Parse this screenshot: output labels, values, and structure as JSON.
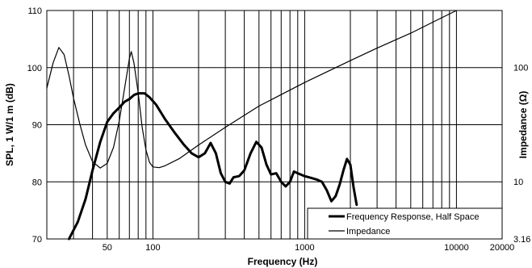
{
  "chart_data": {
    "type": "line",
    "xlabel": "Frequency (Hz)",
    "ylabel_left": "SPL, 1 W/1 m (dB)",
    "ylabel_right": "Impedance (Ω)",
    "x_scale": "log",
    "xlim": [
      20,
      20000
    ],
    "ylim_left": [
      70,
      110
    ],
    "ylim_right": [
      3.16,
      316
    ],
    "y_scale_right": "log",
    "grid": true,
    "x_tick_labels": [
      {
        "value": 50,
        "label": "50"
      },
      {
        "value": 100,
        "label": "100"
      },
      {
        "value": 1000,
        "label": "1000"
      },
      {
        "value": 10000,
        "label": "10000"
      },
      {
        "value": 20000,
        "label": "20000"
      }
    ],
    "y_left_ticks": [
      {
        "value": 70,
        "label": "70"
      },
      {
        "value": 80,
        "label": "80"
      },
      {
        "value": 90,
        "label": "90"
      },
      {
        "value": 100,
        "label": "100"
      },
      {
        "value": 110,
        "label": "110"
      }
    ],
    "y_right_ticks": [
      {
        "value": 3.16,
        "label": "3.16"
      },
      {
        "value": 10,
        "label": "10"
      },
      {
        "value": 100,
        "label": "100"
      }
    ],
    "legend_position": "bottom-right",
    "series": [
      {
        "name": "Frequency Response, Half Space",
        "axis": "left",
        "line": "thick",
        "points": [
          [
            28,
            70
          ],
          [
            32,
            73
          ],
          [
            36,
            77
          ],
          [
            40,
            82
          ],
          [
            45,
            87
          ],
          [
            50,
            90.5
          ],
          [
            55,
            92
          ],
          [
            60,
            93
          ],
          [
            65,
            94
          ],
          [
            70,
            94.5
          ],
          [
            75,
            95.2
          ],
          [
            80,
            95.5
          ],
          [
            88,
            95.5
          ],
          [
            95,
            94.8
          ],
          [
            105,
            93.5
          ],
          [
            120,
            91
          ],
          [
            140,
            88.5
          ],
          [
            160,
            86.5
          ],
          [
            180,
            85
          ],
          [
            200,
            84.3
          ],
          [
            220,
            85
          ],
          [
            240,
            86.8
          ],
          [
            260,
            85
          ],
          [
            280,
            81.5
          ],
          [
            300,
            80
          ],
          [
            320,
            79.7
          ],
          [
            340,
            80.8
          ],
          [
            370,
            81
          ],
          [
            400,
            82
          ],
          [
            440,
            85
          ],
          [
            480,
            87
          ],
          [
            520,
            86
          ],
          [
            560,
            83
          ],
          [
            600,
            81.3
          ],
          [
            650,
            81.5
          ],
          [
            700,
            80
          ],
          [
            750,
            79.2
          ],
          [
            800,
            80
          ],
          [
            850,
            81.8
          ],
          [
            900,
            81.5
          ],
          [
            1000,
            81
          ],
          [
            1100,
            80.7
          ],
          [
            1200,
            80.4
          ],
          [
            1300,
            80
          ],
          [
            1400,
            78.5
          ],
          [
            1500,
            76.6
          ],
          [
            1600,
            77.5
          ],
          [
            1700,
            79.5
          ],
          [
            1800,
            82
          ],
          [
            1900,
            84
          ],
          [
            2000,
            83
          ],
          [
            2100,
            79
          ],
          [
            2200,
            76
          ]
        ]
      },
      {
        "name": "Impedance",
        "axis": "right",
        "line": "thin",
        "points": [
          [
            20,
            66
          ],
          [
            22,
            110
          ],
          [
            24,
            150
          ],
          [
            26,
            130
          ],
          [
            28,
            85
          ],
          [
            30,
            54
          ],
          [
            33,
            32
          ],
          [
            36,
            21
          ],
          [
            40,
            15
          ],
          [
            45,
            13.2
          ],
          [
            50,
            14.5
          ],
          [
            55,
            20
          ],
          [
            60,
            34
          ],
          [
            65,
            65
          ],
          [
            70,
            120
          ],
          [
            72,
            138
          ],
          [
            75,
            110
          ],
          [
            80,
            60
          ],
          [
            85,
            30
          ],
          [
            90,
            19
          ],
          [
            95,
            14.8
          ],
          [
            100,
            13.5
          ],
          [
            110,
            13.3
          ],
          [
            120,
            13.8
          ],
          [
            150,
            16
          ],
          [
            200,
            21
          ],
          [
            300,
            30
          ],
          [
            500,
            46
          ],
          [
            700,
            58
          ],
          [
            1000,
            74
          ],
          [
            2000,
            115
          ],
          [
            3000,
            148
          ],
          [
            5000,
            200
          ],
          [
            7000,
            250
          ],
          [
            10000,
            316
          ]
        ]
      }
    ]
  }
}
